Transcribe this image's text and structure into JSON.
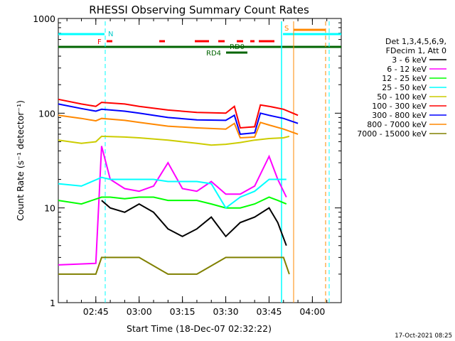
{
  "chart_data": {
    "type": "line",
    "title": "RHESSI Observing Summary Count Rates",
    "xlabel": "Start Time (18-Dec-07 02:32:22)",
    "ylabel": "Count Rate (s⁻¹ detector⁻¹)",
    "yscale": "log",
    "ylim": [
      1,
      1000
    ],
    "xlim": [
      "02:32",
      "04:10"
    ],
    "x_ticks": [
      "02:45",
      "03:00",
      "03:15",
      "03:30",
      "03:45",
      "04:00"
    ],
    "y_ticks": [
      "1",
      "10",
      "100",
      "1000"
    ],
    "legend_title": [
      "Det 1,3,4,5,6,9,",
      "FDecim 1, Att 0"
    ],
    "legend_placement": "right",
    "timestamp": "17-Oct-2021 08:25",
    "flags": {
      "N_label": "N",
      "F_label": "F",
      "S_label": "S",
      "RD0_label": "RD0",
      "RD4_label": "RD4"
    },
    "series": [
      {
        "name": "3 - 6 keV",
        "color": "#000000",
        "points": [
          [
            "02:32",
            null
          ],
          [
            "02:47",
            12
          ],
          [
            "02:50",
            10
          ],
          [
            "02:55",
            9
          ],
          [
            "03:00",
            11
          ],
          [
            "03:05",
            9
          ],
          [
            "03:10",
            6
          ],
          [
            "03:15",
            5
          ],
          [
            "03:20",
            6
          ],
          [
            "03:25",
            8
          ],
          [
            "03:30",
            5
          ],
          [
            "03:35",
            7
          ],
          [
            "03:40",
            8
          ],
          [
            "03:45",
            10
          ],
          [
            "03:48",
            7
          ],
          [
            "03:51",
            4
          ]
        ]
      },
      {
        "name": "6 - 12 keV",
        "color": "#ff00ff",
        "points": [
          [
            "02:32",
            2.5
          ],
          [
            "02:45",
            2.6
          ],
          [
            "02:47",
            45
          ],
          [
            "02:50",
            20
          ],
          [
            "02:55",
            16
          ],
          [
            "03:00",
            15
          ],
          [
            "03:05",
            17
          ],
          [
            "03:10",
            30
          ],
          [
            "03:15",
            16
          ],
          [
            "03:20",
            15
          ],
          [
            "03:25",
            19
          ],
          [
            "03:30",
            14
          ],
          [
            "03:35",
            14
          ],
          [
            "03:40",
            17
          ],
          [
            "03:45",
            35
          ],
          [
            "03:48",
            20
          ],
          [
            "03:51",
            13
          ]
        ]
      },
      {
        "name": "12 - 25 keV",
        "color": "#00ff00",
        "points": [
          [
            "02:32",
            12
          ],
          [
            "02:40",
            11
          ],
          [
            "02:47",
            13
          ],
          [
            "02:50",
            13
          ],
          [
            "02:55",
            12.5
          ],
          [
            "03:00",
            13
          ],
          [
            "03:05",
            13
          ],
          [
            "03:10",
            12
          ],
          [
            "03:15",
            12
          ],
          [
            "03:20",
            12
          ],
          [
            "03:25",
            11
          ],
          [
            "03:30",
            10
          ],
          [
            "03:35",
            10
          ],
          [
            "03:40",
            11
          ],
          [
            "03:45",
            13
          ],
          [
            "03:48",
            12
          ],
          [
            "03:51",
            11
          ]
        ]
      },
      {
        "name": "25 - 50 keV",
        "color": "#00ffff",
        "points": [
          [
            "02:32",
            18
          ],
          [
            "02:40",
            17
          ],
          [
            "02:47",
            21
          ],
          [
            "02:50",
            20
          ],
          [
            "02:55",
            20
          ],
          [
            "03:00",
            20
          ],
          [
            "03:05",
            20
          ],
          [
            "03:10",
            19
          ],
          [
            "03:15",
            19
          ],
          [
            "03:20",
            19
          ],
          [
            "03:25",
            18
          ],
          [
            "03:30",
            10
          ],
          [
            "03:35",
            13
          ],
          [
            "03:40",
            15
          ],
          [
            "03:45",
            20
          ],
          [
            "03:48",
            20
          ],
          [
            "03:51",
            20
          ]
        ]
      },
      {
        "name": "50 - 100 keV",
        "color": "#cccc00",
        "points": [
          [
            "02:32",
            52
          ],
          [
            "02:40",
            48
          ],
          [
            "02:45",
            50
          ],
          [
            "02:47",
            57
          ],
          [
            "02:55",
            56
          ],
          [
            "03:00",
            55
          ],
          [
            "03:10",
            52
          ],
          [
            "03:20",
            48
          ],
          [
            "03:25",
            46
          ],
          [
            "03:30",
            47
          ],
          [
            "03:35",
            49
          ],
          [
            "03:40",
            52
          ],
          [
            "03:45",
            54
          ],
          [
            "03:50",
            55
          ],
          [
            "03:52",
            57
          ]
        ]
      },
      {
        "name": "100 - 300 keV",
        "color": "#ff0000",
        "points": [
          [
            "02:32",
            140
          ],
          [
            "02:40",
            125
          ],
          [
            "02:45",
            118
          ],
          [
            "02:47",
            130
          ],
          [
            "02:55",
            125
          ],
          [
            "03:00",
            118
          ],
          [
            "03:10",
            108
          ],
          [
            "03:20",
            102
          ],
          [
            "03:30",
            100
          ],
          [
            "03:33",
            118
          ],
          [
            "03:35",
            70
          ],
          [
            "03:40",
            72
          ],
          [
            "03:42",
            122
          ],
          [
            "03:45",
            118
          ],
          [
            "03:50",
            110
          ],
          [
            "03:55",
            95
          ]
        ]
      },
      {
        "name": "300 - 800 keV",
        "color": "#0000ff",
        "points": [
          [
            "02:32",
            125
          ],
          [
            "02:40",
            112
          ],
          [
            "02:45",
            105
          ],
          [
            "02:47",
            110
          ],
          [
            "02:55",
            105
          ],
          [
            "03:00",
            100
          ],
          [
            "03:10",
            90
          ],
          [
            "03:20",
            85
          ],
          [
            "03:30",
            84
          ],
          [
            "03:33",
            95
          ],
          [
            "03:35",
            60
          ],
          [
            "03:40",
            62
          ],
          [
            "03:42",
            100
          ],
          [
            "03:45",
            95
          ],
          [
            "03:50",
            88
          ],
          [
            "03:55",
            78
          ]
        ]
      },
      {
        "name": "800 - 7000 keV",
        "color": "#ff8800",
        "points": [
          [
            "02:32",
            95
          ],
          [
            "02:40",
            88
          ],
          [
            "02:45",
            83
          ],
          [
            "02:47",
            88
          ],
          [
            "02:55",
            84
          ],
          [
            "03:00",
            80
          ],
          [
            "03:10",
            73
          ],
          [
            "03:20",
            70
          ],
          [
            "03:30",
            68
          ],
          [
            "03:33",
            78
          ],
          [
            "03:35",
            55
          ],
          [
            "03:40",
            56
          ],
          [
            "03:42",
            80
          ],
          [
            "03:45",
            75
          ],
          [
            "03:50",
            68
          ],
          [
            "03:55",
            60
          ]
        ]
      },
      {
        "name": "7000 - 15000 keV",
        "color": "#808000",
        "points": [
          [
            "02:32",
            2
          ],
          [
            "02:45",
            2
          ],
          [
            "02:47",
            3
          ],
          [
            "02:55",
            3
          ],
          [
            "03:00",
            3
          ],
          [
            "03:10",
            2
          ],
          [
            "03:20",
            2
          ],
          [
            "03:30",
            3
          ],
          [
            "03:40",
            3
          ],
          [
            "03:45",
            3
          ],
          [
            "03:50",
            3
          ],
          [
            "03:52",
            2
          ]
        ]
      }
    ]
  }
}
